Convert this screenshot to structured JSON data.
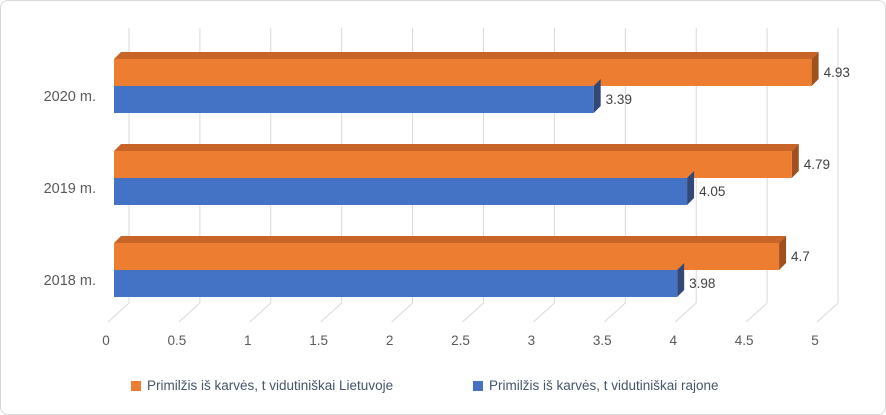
{
  "chart_data": {
    "type": "bar",
    "orientation": "horizontal",
    "effect": "3d",
    "title": "",
    "xlabel": "",
    "ylabel": "",
    "categories": [
      "2020 m.",
      "2019 m.",
      "2018 m."
    ],
    "series": [
      {
        "name": "Primilžis iš karvės, t vidutiniškai Lietuvoje",
        "color": "#ED7D31",
        "top_color": "#C86428",
        "side_color": "#A0501E",
        "values": [
          4.93,
          4.79,
          4.7
        ]
      },
      {
        "name": "Primilžis iš karvės, t vidutiniškai rajone",
        "color": "#4472C4",
        "top_color": "#3A5EA5",
        "side_color": "#344878",
        "values": [
          3.39,
          4.05,
          3.98
        ]
      }
    ],
    "data_labels": [
      [
        "4.93",
        "4.79",
        "4.7"
      ],
      [
        "3.39",
        "4.05",
        "3.98"
      ]
    ],
    "xlim": [
      0,
      5
    ],
    "tick_step": 0.5,
    "x_ticks": [
      "0",
      "0.5",
      "1",
      "1.5",
      "2",
      "2.5",
      "3",
      "3.5",
      "4",
      "4.5",
      "5"
    ],
    "grid": true,
    "legend_position": "bottom"
  },
  "colors": {
    "grid": "#D9D9D9",
    "frame_border": "#D9D9D9",
    "axis_text": "#595959",
    "data_label_text": "#404040",
    "legend_text": "#44546A",
    "background": "#FFFFFF"
  }
}
